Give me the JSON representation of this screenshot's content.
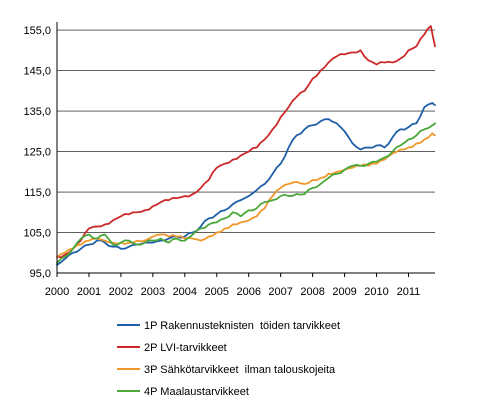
{
  "chart_data": {
    "type": "line",
    "x_start_year": 2000,
    "x_tick_labels": [
      "2000",
      "2001",
      "2002",
      "2003",
      "2004",
      "2005",
      "2006",
      "2007",
      "2008",
      "2009",
      "2010",
      "2011"
    ],
    "y_tick_labels": [
      "95,0",
      "105,0",
      "115,0",
      "125,0",
      "135,0",
      "145,0",
      "155,0"
    ],
    "y_ticks": [
      95,
      105,
      115,
      125,
      135,
      145,
      155
    ],
    "ylim": [
      95,
      157
    ],
    "xlim": [
      2000.0,
      2011.83
    ],
    "grid": {
      "horizontal": true,
      "vertical": false
    },
    "legend_position": "bottom",
    "series": [
      {
        "name": "1P Rakennusteknisten  töiden tarvikkeet",
        "color": "#1f5fa8",
        "points": [
          [
            2000.0,
            97.0
          ],
          [
            2000.25,
            98.5
          ],
          [
            2000.5,
            100.0
          ],
          [
            2000.75,
            101.0
          ],
          [
            2001.0,
            102.0
          ],
          [
            2001.25,
            103.0
          ],
          [
            2001.5,
            102.5
          ],
          [
            2001.75,
            101.5
          ],
          [
            2002.0,
            101.0
          ],
          [
            2002.25,
            101.5
          ],
          [
            2002.5,
            102.0
          ],
          [
            2002.75,
            102.5
          ],
          [
            2003.0,
            102.5
          ],
          [
            2003.25,
            103.0
          ],
          [
            2003.5,
            103.5
          ],
          [
            2003.75,
            104.0
          ],
          [
            2004.0,
            104.0
          ],
          [
            2004.25,
            105.0
          ],
          [
            2004.5,
            106.5
          ],
          [
            2004.75,
            108.5
          ],
          [
            2005.0,
            109.5
          ],
          [
            2005.25,
            110.5
          ],
          [
            2005.5,
            112.0
          ],
          [
            2005.75,
            113.0
          ],
          [
            2006.0,
            114.0
          ],
          [
            2006.25,
            115.5
          ],
          [
            2006.5,
            117.0
          ],
          [
            2006.75,
            119.5
          ],
          [
            2007.0,
            122.0
          ],
          [
            2007.25,
            126.0
          ],
          [
            2007.5,
            129.0
          ],
          [
            2007.75,
            130.5
          ],
          [
            2008.0,
            131.5
          ],
          [
            2008.25,
            132.5
          ],
          [
            2008.5,
            133.0
          ],
          [
            2008.75,
            132.0
          ],
          [
            2009.0,
            130.0
          ],
          [
            2009.25,
            127.0
          ],
          [
            2009.5,
            125.5
          ],
          [
            2009.75,
            126.0
          ],
          [
            2010.0,
            126.5
          ],
          [
            2010.25,
            126.0
          ],
          [
            2010.5,
            128.5
          ],
          [
            2010.75,
            130.5
          ],
          [
            2011.0,
            131.0
          ],
          [
            2011.25,
            132.0
          ],
          [
            2011.5,
            136.0
          ],
          [
            2011.75,
            137.0
          ],
          [
            2011.83,
            136.5
          ]
        ]
      },
      {
        "name": "2P LVI-tarvikkeet",
        "color": "#cc2a2a",
        "points": [
          [
            2000.0,
            99.0
          ],
          [
            2000.25,
            99.5
          ],
          [
            2000.5,
            101.0
          ],
          [
            2000.75,
            103.0
          ],
          [
            2001.0,
            106.0
          ],
          [
            2001.25,
            106.5
          ],
          [
            2001.5,
            107.0
          ],
          [
            2001.75,
            108.0
          ],
          [
            2002.0,
            109.0
          ],
          [
            2002.25,
            109.5
          ],
          [
            2002.5,
            110.0
          ],
          [
            2002.75,
            110.5
          ],
          [
            2003.0,
            111.5
          ],
          [
            2003.25,
            112.5
          ],
          [
            2003.5,
            113.0
          ],
          [
            2003.75,
            113.5
          ],
          [
            2004.0,
            114.0
          ],
          [
            2004.25,
            114.5
          ],
          [
            2004.5,
            116.0
          ],
          [
            2004.75,
            118.0
          ],
          [
            2005.0,
            121.0
          ],
          [
            2005.25,
            122.0
          ],
          [
            2005.5,
            123.0
          ],
          [
            2005.75,
            124.0
          ],
          [
            2006.0,
            125.0
          ],
          [
            2006.25,
            126.0
          ],
          [
            2006.5,
            128.0
          ],
          [
            2006.75,
            130.5
          ],
          [
            2007.0,
            133.5
          ],
          [
            2007.25,
            136.0
          ],
          [
            2007.5,
            138.5
          ],
          [
            2007.75,
            140.0
          ],
          [
            2008.0,
            143.0
          ],
          [
            2008.25,
            145.0
          ],
          [
            2008.5,
            147.0
          ],
          [
            2008.75,
            148.5
          ],
          [
            2009.0,
            149.0
          ],
          [
            2009.25,
            149.5
          ],
          [
            2009.5,
            150.0
          ],
          [
            2009.75,
            147.5
          ],
          [
            2010.0,
            146.5
          ],
          [
            2010.25,
            147.0
          ],
          [
            2010.5,
            147.0
          ],
          [
            2010.75,
            148.0
          ],
          [
            2011.0,
            150.0
          ],
          [
            2011.25,
            151.0
          ],
          [
            2011.5,
            154.0
          ],
          [
            2011.7,
            156.0
          ],
          [
            2011.83,
            151.0
          ]
        ]
      },
      {
        "name": "3P Sähkötarvikkeet  ilman talouskojeita",
        "color": "#f0982a",
        "points": [
          [
            2000.0,
            99.0
          ],
          [
            2000.25,
            100.0
          ],
          [
            2000.5,
            101.0
          ],
          [
            2000.75,
            102.0
          ],
          [
            2001.0,
            103.0
          ],
          [
            2001.25,
            103.5
          ],
          [
            2001.5,
            103.0
          ],
          [
            2001.75,
            102.5
          ],
          [
            2002.0,
            102.5
          ],
          [
            2002.25,
            102.5
          ],
          [
            2002.5,
            103.0
          ],
          [
            2002.75,
            103.0
          ],
          [
            2003.0,
            104.0
          ],
          [
            2003.25,
            104.5
          ],
          [
            2003.5,
            104.0
          ],
          [
            2003.75,
            104.0
          ],
          [
            2004.0,
            103.5
          ],
          [
            2004.25,
            103.5
          ],
          [
            2004.5,
            103.0
          ],
          [
            2004.75,
            104.0
          ],
          [
            2005.0,
            105.0
          ],
          [
            2005.25,
            106.0
          ],
          [
            2005.5,
            107.0
          ],
          [
            2005.75,
            107.5
          ],
          [
            2006.0,
            108.0
          ],
          [
            2006.25,
            109.0
          ],
          [
            2006.5,
            111.0
          ],
          [
            2006.75,
            114.0
          ],
          [
            2007.0,
            116.0
          ],
          [
            2007.25,
            117.0
          ],
          [
            2007.5,
            117.5
          ],
          [
            2007.75,
            117.0
          ],
          [
            2008.0,
            118.0
          ],
          [
            2008.25,
            118.5
          ],
          [
            2008.5,
            119.5
          ],
          [
            2008.75,
            120.0
          ],
          [
            2009.0,
            120.5
          ],
          [
            2009.25,
            121.0
          ],
          [
            2009.5,
            121.5
          ],
          [
            2009.75,
            121.5
          ],
          [
            2010.0,
            122.0
          ],
          [
            2010.25,
            123.0
          ],
          [
            2010.5,
            124.5
          ],
          [
            2010.75,
            125.5
          ],
          [
            2011.0,
            126.0
          ],
          [
            2011.25,
            127.0
          ],
          [
            2011.5,
            128.0
          ],
          [
            2011.75,
            129.5
          ],
          [
            2011.83,
            129.0
          ]
        ]
      },
      {
        "name": "4P Maalaustarvikkeet",
        "color": "#4aa83a",
        "points": [
          [
            2000.0,
            97.5
          ],
          [
            2000.25,
            99.0
          ],
          [
            2000.5,
            101.0
          ],
          [
            2000.75,
            103.5
          ],
          [
            2001.0,
            104.5
          ],
          [
            2001.25,
            103.5
          ],
          [
            2001.5,
            104.5
          ],
          [
            2001.75,
            102.0
          ],
          [
            2002.0,
            102.5
          ],
          [
            2002.25,
            103.0
          ],
          [
            2002.5,
            102.0
          ],
          [
            2002.75,
            102.5
          ],
          [
            2003.0,
            103.0
          ],
          [
            2003.25,
            103.5
          ],
          [
            2003.5,
            102.5
          ],
          [
            2003.75,
            103.5
          ],
          [
            2004.0,
            103.0
          ],
          [
            2004.25,
            104.5
          ],
          [
            2004.5,
            106.0
          ],
          [
            2004.75,
            107.0
          ],
          [
            2005.0,
            107.5
          ],
          [
            2005.25,
            108.5
          ],
          [
            2005.5,
            110.0
          ],
          [
            2005.75,
            109.0
          ],
          [
            2006.0,
            110.5
          ],
          [
            2006.25,
            111.0
          ],
          [
            2006.5,
            112.5
          ],
          [
            2006.75,
            113.0
          ],
          [
            2007.0,
            114.0
          ],
          [
            2007.25,
            114.0
          ],
          [
            2007.5,
            114.5
          ],
          [
            2007.75,
            114.5
          ],
          [
            2008.0,
            116.0
          ],
          [
            2008.25,
            117.0
          ],
          [
            2008.5,
            118.5
          ],
          [
            2008.75,
            119.5
          ],
          [
            2009.0,
            120.5
          ],
          [
            2009.25,
            121.5
          ],
          [
            2009.5,
            121.5
          ],
          [
            2009.75,
            122.0
          ],
          [
            2010.0,
            122.5
          ],
          [
            2010.25,
            123.5
          ],
          [
            2010.5,
            125.0
          ],
          [
            2010.75,
            126.5
          ],
          [
            2011.0,
            128.0
          ],
          [
            2011.25,
            129.0
          ],
          [
            2011.5,
            130.5
          ],
          [
            2011.75,
            131.5
          ],
          [
            2011.83,
            132.0
          ]
        ]
      }
    ]
  }
}
